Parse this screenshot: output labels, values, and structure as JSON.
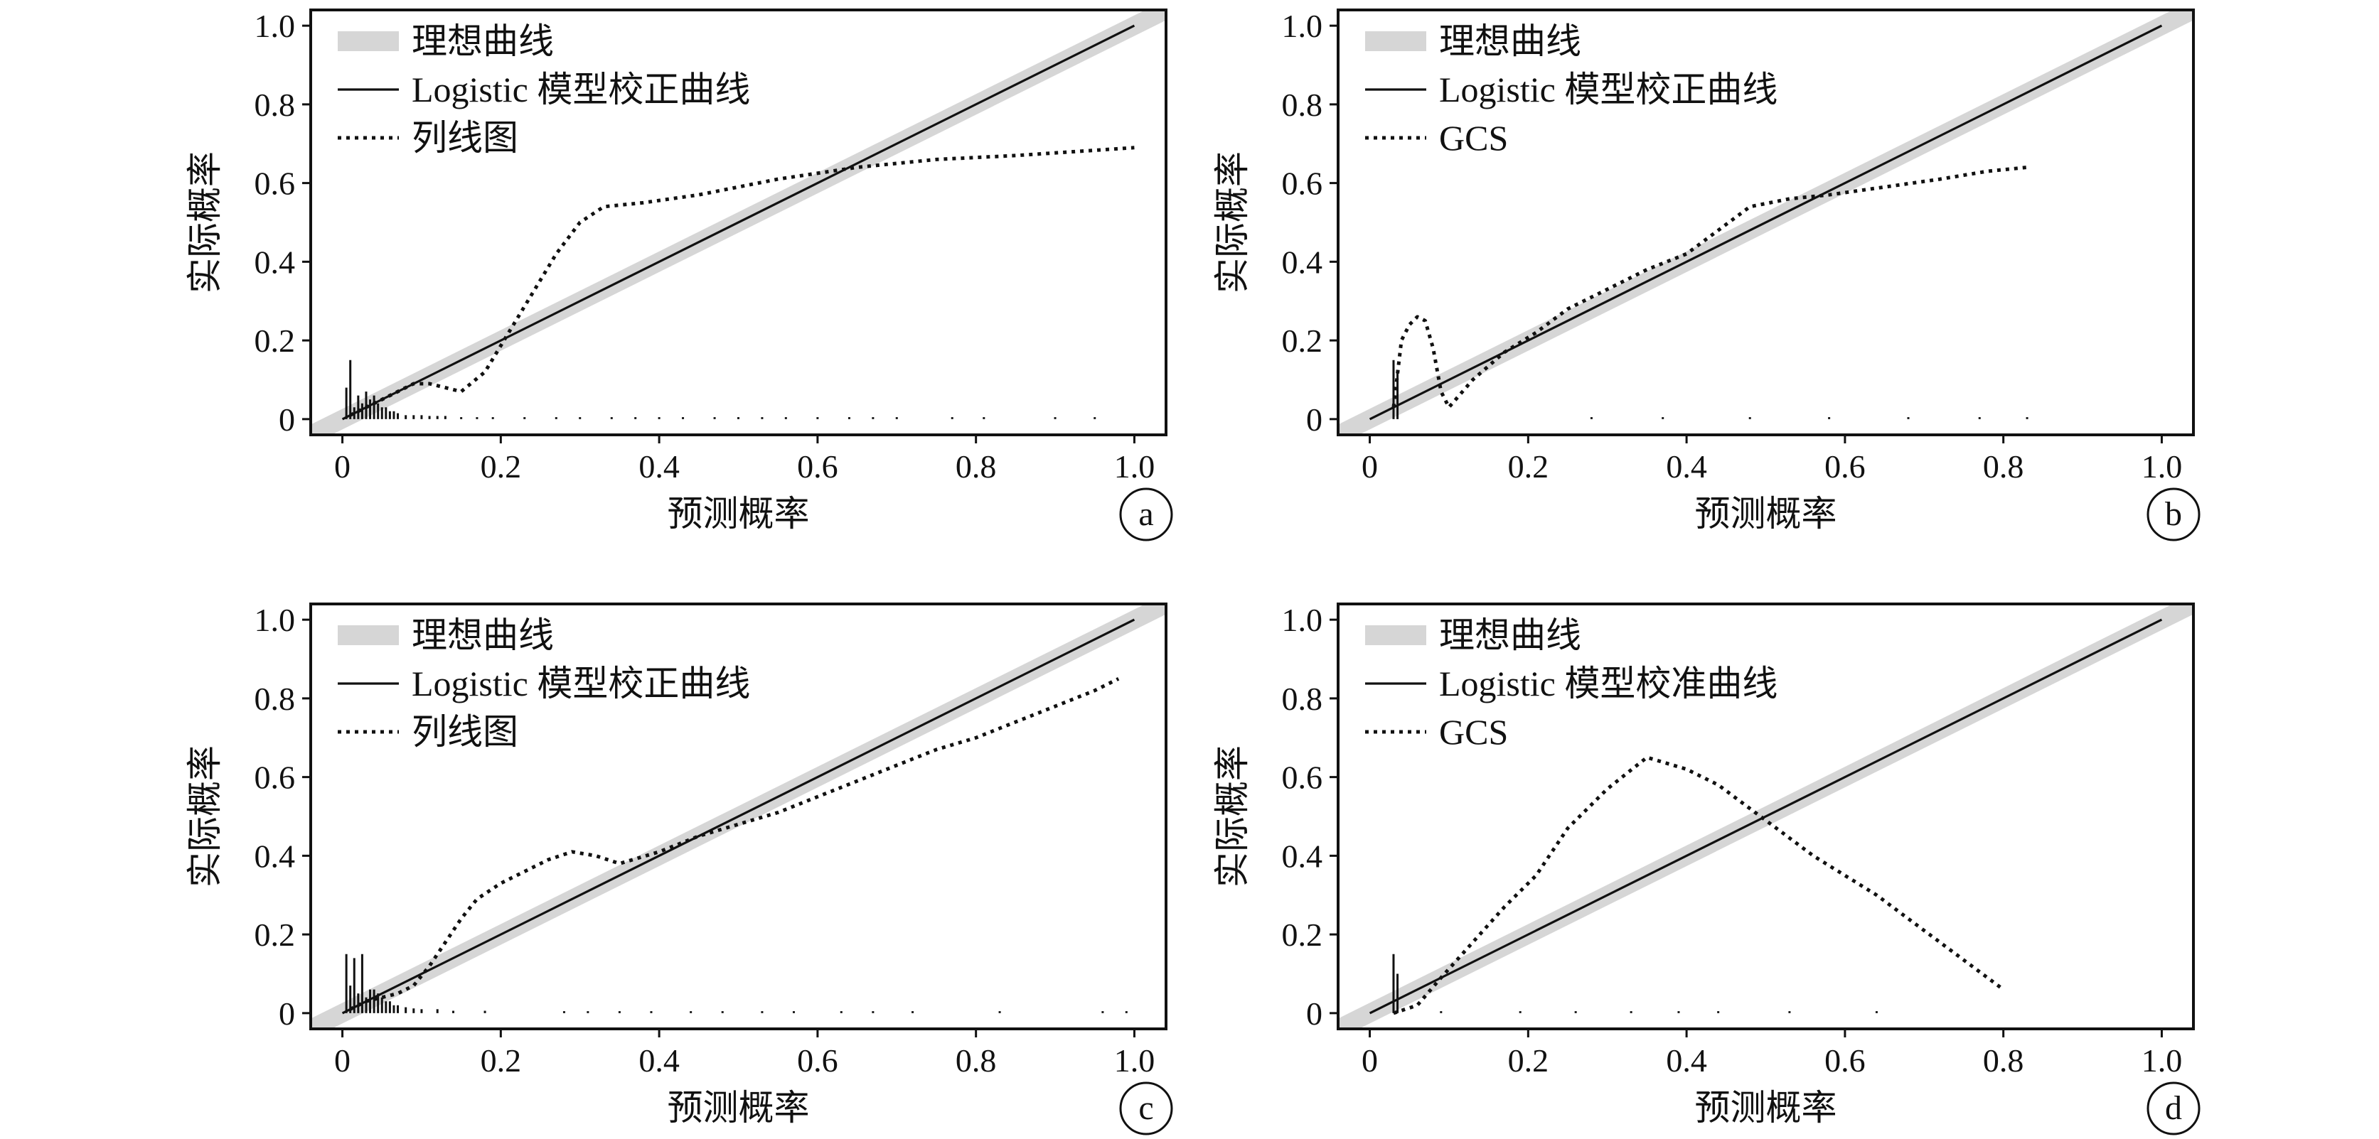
{
  "chart_data": [
    {
      "type": "line",
      "panel_label": "a",
      "xlabel": "预测概率",
      "ylabel": "实际概率",
      "xlim": [
        -0.04,
        1.04
      ],
      "ylim": [
        -0.04,
        1.04
      ],
      "x_ticks": [
        {
          "v": 0,
          "t": "0"
        },
        {
          "v": 0.2,
          "t": "0.2"
        },
        {
          "v": 0.4,
          "t": "0.4"
        },
        {
          "v": 0.6,
          "t": "0.6"
        },
        {
          "v": 0.8,
          "t": "0.8"
        },
        {
          "v": 1.0,
          "t": "1.0"
        }
      ],
      "y_ticks": [
        {
          "v": 0,
          "t": "0"
        },
        {
          "v": 0.2,
          "t": "0.2"
        },
        {
          "v": 0.4,
          "t": "0.4"
        },
        {
          "v": 0.6,
          "t": "0.6"
        },
        {
          "v": 0.8,
          "t": "0.8"
        },
        {
          "v": 1.0,
          "t": "1.0"
        }
      ],
      "grid": false,
      "legend_position": "top-left",
      "series": [
        {
          "name": "理想曲线",
          "style": "thick-gray",
          "x": [
            -0.04,
            1.04
          ],
          "y": [
            -0.04,
            1.04
          ]
        },
        {
          "name": "Logistic 模型校正曲线",
          "style": "solid",
          "x": [
            0.0,
            1.0
          ],
          "y": [
            0.0,
            1.0
          ]
        },
        {
          "name": "列线图",
          "style": "dotted",
          "x": [
            0.01,
            0.03,
            0.05,
            0.07,
            0.09,
            0.11,
            0.13,
            0.15,
            0.18,
            0.21,
            0.24,
            0.27,
            0.3,
            0.33,
            0.38,
            0.45,
            0.55,
            0.65,
            0.75,
            0.85,
            1.0
          ],
          "y": [
            0.01,
            0.03,
            0.05,
            0.07,
            0.09,
            0.09,
            0.08,
            0.07,
            0.12,
            0.22,
            0.32,
            0.42,
            0.5,
            0.54,
            0.55,
            0.57,
            0.61,
            0.64,
            0.66,
            0.67,
            0.69
          ]
        }
      ],
      "rug_x": [
        0.005,
        0.01,
        0.015,
        0.02,
        0.025,
        0.03,
        0.035,
        0.04,
        0.045,
        0.05,
        0.055,
        0.06,
        0.065,
        0.07,
        0.08,
        0.09,
        0.1,
        0.11,
        0.12,
        0.13,
        0.15,
        0.17,
        0.19,
        0.23,
        0.27,
        0.3,
        0.34,
        0.37,
        0.4,
        0.43,
        0.47,
        0.5,
        0.53,
        0.56,
        0.6,
        0.64,
        0.67,
        0.7,
        0.77,
        0.81,
        0.9,
        0.95
      ],
      "rug_h": [
        0.08,
        0.15,
        0.03,
        0.06,
        0.04,
        0.07,
        0.05,
        0.06,
        0.04,
        0.03,
        0.03,
        0.02,
        0.02,
        0.015,
        0.01,
        0.01,
        0.01,
        0.008,
        0.008,
        0.008,
        0.005,
        0.005,
        0.005,
        0.005,
        0.005,
        0.005,
        0.005,
        0.005,
        0.005,
        0.005,
        0.005,
        0.005,
        0.005,
        0.005,
        0.005,
        0.005,
        0.005,
        0.005,
        0.005,
        0.005,
        0.005,
        0.005
      ]
    },
    {
      "type": "line",
      "panel_label": "b",
      "xlabel": "预测概率",
      "ylabel": "实际概率",
      "xlim": [
        -0.04,
        1.04
      ],
      "ylim": [
        -0.04,
        1.04
      ],
      "x_ticks": [
        {
          "v": 0,
          "t": "0"
        },
        {
          "v": 0.2,
          "t": "0.2"
        },
        {
          "v": 0.4,
          "t": "0.4"
        },
        {
          "v": 0.6,
          "t": "0.6"
        },
        {
          "v": 0.8,
          "t": "0.8"
        },
        {
          "v": 1.0,
          "t": "1.0"
        }
      ],
      "y_ticks": [
        {
          "v": 0,
          "t": "0"
        },
        {
          "v": 0.2,
          "t": "0.2"
        },
        {
          "v": 0.4,
          "t": "0.4"
        },
        {
          "v": 0.6,
          "t": "0.6"
        },
        {
          "v": 0.8,
          "t": "0.8"
        },
        {
          "v": 1.0,
          "t": "1.0"
        }
      ],
      "grid": false,
      "legend_position": "top-left",
      "series": [
        {
          "name": "理想曲线",
          "style": "thick-gray",
          "x": [
            -0.04,
            1.04
          ],
          "y": [
            -0.04,
            1.04
          ]
        },
        {
          "name": "Logistic 模型校正曲线",
          "style": "solid",
          "x": [
            0.0,
            1.0
          ],
          "y": [
            0.0,
            1.0
          ]
        },
        {
          "name": "GCS",
          "style": "dotted",
          "x": [
            0.03,
            0.04,
            0.05,
            0.06,
            0.07,
            0.08,
            0.09,
            0.1,
            0.13,
            0.17,
            0.21,
            0.25,
            0.3,
            0.35,
            0.4,
            0.44,
            0.48,
            0.53,
            0.58,
            0.65,
            0.72,
            0.78,
            0.83
          ],
          "y": [
            0.03,
            0.2,
            0.24,
            0.26,
            0.25,
            0.18,
            0.07,
            0.03,
            0.1,
            0.17,
            0.22,
            0.28,
            0.33,
            0.38,
            0.42,
            0.48,
            0.54,
            0.56,
            0.57,
            0.59,
            0.61,
            0.63,
            0.64
          ]
        }
      ],
      "rug_x": [
        0.03,
        0.035,
        0.28,
        0.37,
        0.48,
        0.58,
        0.68,
        0.77,
        0.83
      ],
      "rug_h": [
        0.15,
        0.12,
        0.005,
        0.005,
        0.005,
        0.005,
        0.005,
        0.005,
        0.005
      ]
    },
    {
      "type": "line",
      "panel_label": "c",
      "xlabel": "预测概率",
      "ylabel": "实际概率",
      "xlim": [
        -0.04,
        1.04
      ],
      "ylim": [
        -0.04,
        1.04
      ],
      "x_ticks": [
        {
          "v": 0,
          "t": "0"
        },
        {
          "v": 0.2,
          "t": "0.2"
        },
        {
          "v": 0.4,
          "t": "0.4"
        },
        {
          "v": 0.6,
          "t": "0.6"
        },
        {
          "v": 0.8,
          "t": "0.8"
        },
        {
          "v": 1.0,
          "t": "1.0"
        }
      ],
      "y_ticks": [
        {
          "v": 0,
          "t": "0"
        },
        {
          "v": 0.2,
          "t": "0.2"
        },
        {
          "v": 0.4,
          "t": "0.4"
        },
        {
          "v": 0.6,
          "t": "0.6"
        },
        {
          "v": 0.8,
          "t": "0.8"
        },
        {
          "v": 1.0,
          "t": "1.0"
        }
      ],
      "grid": false,
      "legend_position": "top-left",
      "series": [
        {
          "name": "理想曲线",
          "style": "thick-gray",
          "x": [
            -0.04,
            1.04
          ],
          "y": [
            -0.04,
            1.04
          ]
        },
        {
          "name": "Logistic 模型校正曲线",
          "style": "solid",
          "x": [
            0.0,
            1.0
          ],
          "y": [
            0.0,
            1.0
          ]
        },
        {
          "name": "列线图",
          "style": "dotted",
          "x": [
            0.01,
            0.03,
            0.05,
            0.07,
            0.09,
            0.11,
            0.13,
            0.15,
            0.17,
            0.2,
            0.23,
            0.26,
            0.29,
            0.32,
            0.35,
            0.4,
            0.45,
            0.5,
            0.55,
            0.6,
            0.65,
            0.7,
            0.75,
            0.8,
            0.85,
            0.9,
            0.95,
            0.98
          ],
          "y": [
            0.01,
            0.03,
            0.04,
            0.05,
            0.07,
            0.12,
            0.18,
            0.24,
            0.29,
            0.33,
            0.36,
            0.39,
            0.41,
            0.4,
            0.38,
            0.41,
            0.45,
            0.48,
            0.51,
            0.55,
            0.59,
            0.63,
            0.67,
            0.7,
            0.74,
            0.78,
            0.82,
            0.85
          ]
        }
      ],
      "rug_x": [
        0.005,
        0.01,
        0.015,
        0.02,
        0.025,
        0.03,
        0.035,
        0.04,
        0.045,
        0.05,
        0.055,
        0.06,
        0.065,
        0.07,
        0.08,
        0.09,
        0.1,
        0.12,
        0.14,
        0.18,
        0.28,
        0.31,
        0.35,
        0.39,
        0.44,
        0.48,
        0.53,
        0.57,
        0.63,
        0.67,
        0.72,
        0.83,
        0.96,
        0.99
      ],
      "rug_h": [
        0.15,
        0.07,
        0.14,
        0.05,
        0.15,
        0.04,
        0.06,
        0.06,
        0.05,
        0.04,
        0.03,
        0.03,
        0.02,
        0.02,
        0.015,
        0.012,
        0.01,
        0.01,
        0.006,
        0.006,
        0.005,
        0.005,
        0.005,
        0.005,
        0.005,
        0.005,
        0.005,
        0.005,
        0.005,
        0.005,
        0.005,
        0.005,
        0.005,
        0.005
      ]
    },
    {
      "type": "line",
      "panel_label": "d",
      "xlabel": "预测概率",
      "ylabel": "实际概率",
      "xlim": [
        -0.04,
        1.04
      ],
      "ylim": [
        -0.04,
        1.04
      ],
      "x_ticks": [
        {
          "v": 0,
          "t": "0"
        },
        {
          "v": 0.2,
          "t": "0.2"
        },
        {
          "v": 0.4,
          "t": "0.4"
        },
        {
          "v": 0.6,
          "t": "0.6"
        },
        {
          "v": 0.8,
          "t": "0.8"
        },
        {
          "v": 1.0,
          "t": "1.0"
        }
      ],
      "y_ticks": [
        {
          "v": 0,
          "t": "0"
        },
        {
          "v": 0.2,
          "t": "0.2"
        },
        {
          "v": 0.4,
          "t": "0.4"
        },
        {
          "v": 0.6,
          "t": "0.6"
        },
        {
          "v": 0.8,
          "t": "0.8"
        },
        {
          "v": 1.0,
          "t": "1.0"
        }
      ],
      "grid": false,
      "legend_position": "top-left",
      "series": [
        {
          "name": "理想曲线",
          "style": "thick-gray",
          "x": [
            -0.04,
            1.04
          ],
          "y": [
            -0.04,
            1.04
          ]
        },
        {
          "name": "Logistic 模型校准曲线",
          "style": "solid",
          "x": [
            0.0,
            1.0
          ],
          "y": [
            0.0,
            1.0
          ]
        },
        {
          "name": "GCS",
          "style": "dotted",
          "x": [
            0.03,
            0.06,
            0.09,
            0.13,
            0.17,
            0.21,
            0.25,
            0.3,
            0.35,
            0.4,
            0.44,
            0.48,
            0.52,
            0.56,
            0.6,
            0.64,
            0.68,
            0.72,
            0.76,
            0.8
          ],
          "y": [
            0.0,
            0.02,
            0.09,
            0.18,
            0.27,
            0.35,
            0.47,
            0.57,
            0.65,
            0.62,
            0.58,
            0.52,
            0.46,
            0.4,
            0.35,
            0.3,
            0.24,
            0.18,
            0.12,
            0.06
          ]
        }
      ],
      "rug_x": [
        0.03,
        0.035,
        0.09,
        0.19,
        0.26,
        0.33,
        0.39,
        0.44,
        0.53,
        0.64
      ],
      "rug_h": [
        0.15,
        0.1,
        0.005,
        0.005,
        0.005,
        0.005,
        0.005,
        0.005,
        0.005,
        0.005
      ]
    }
  ]
}
